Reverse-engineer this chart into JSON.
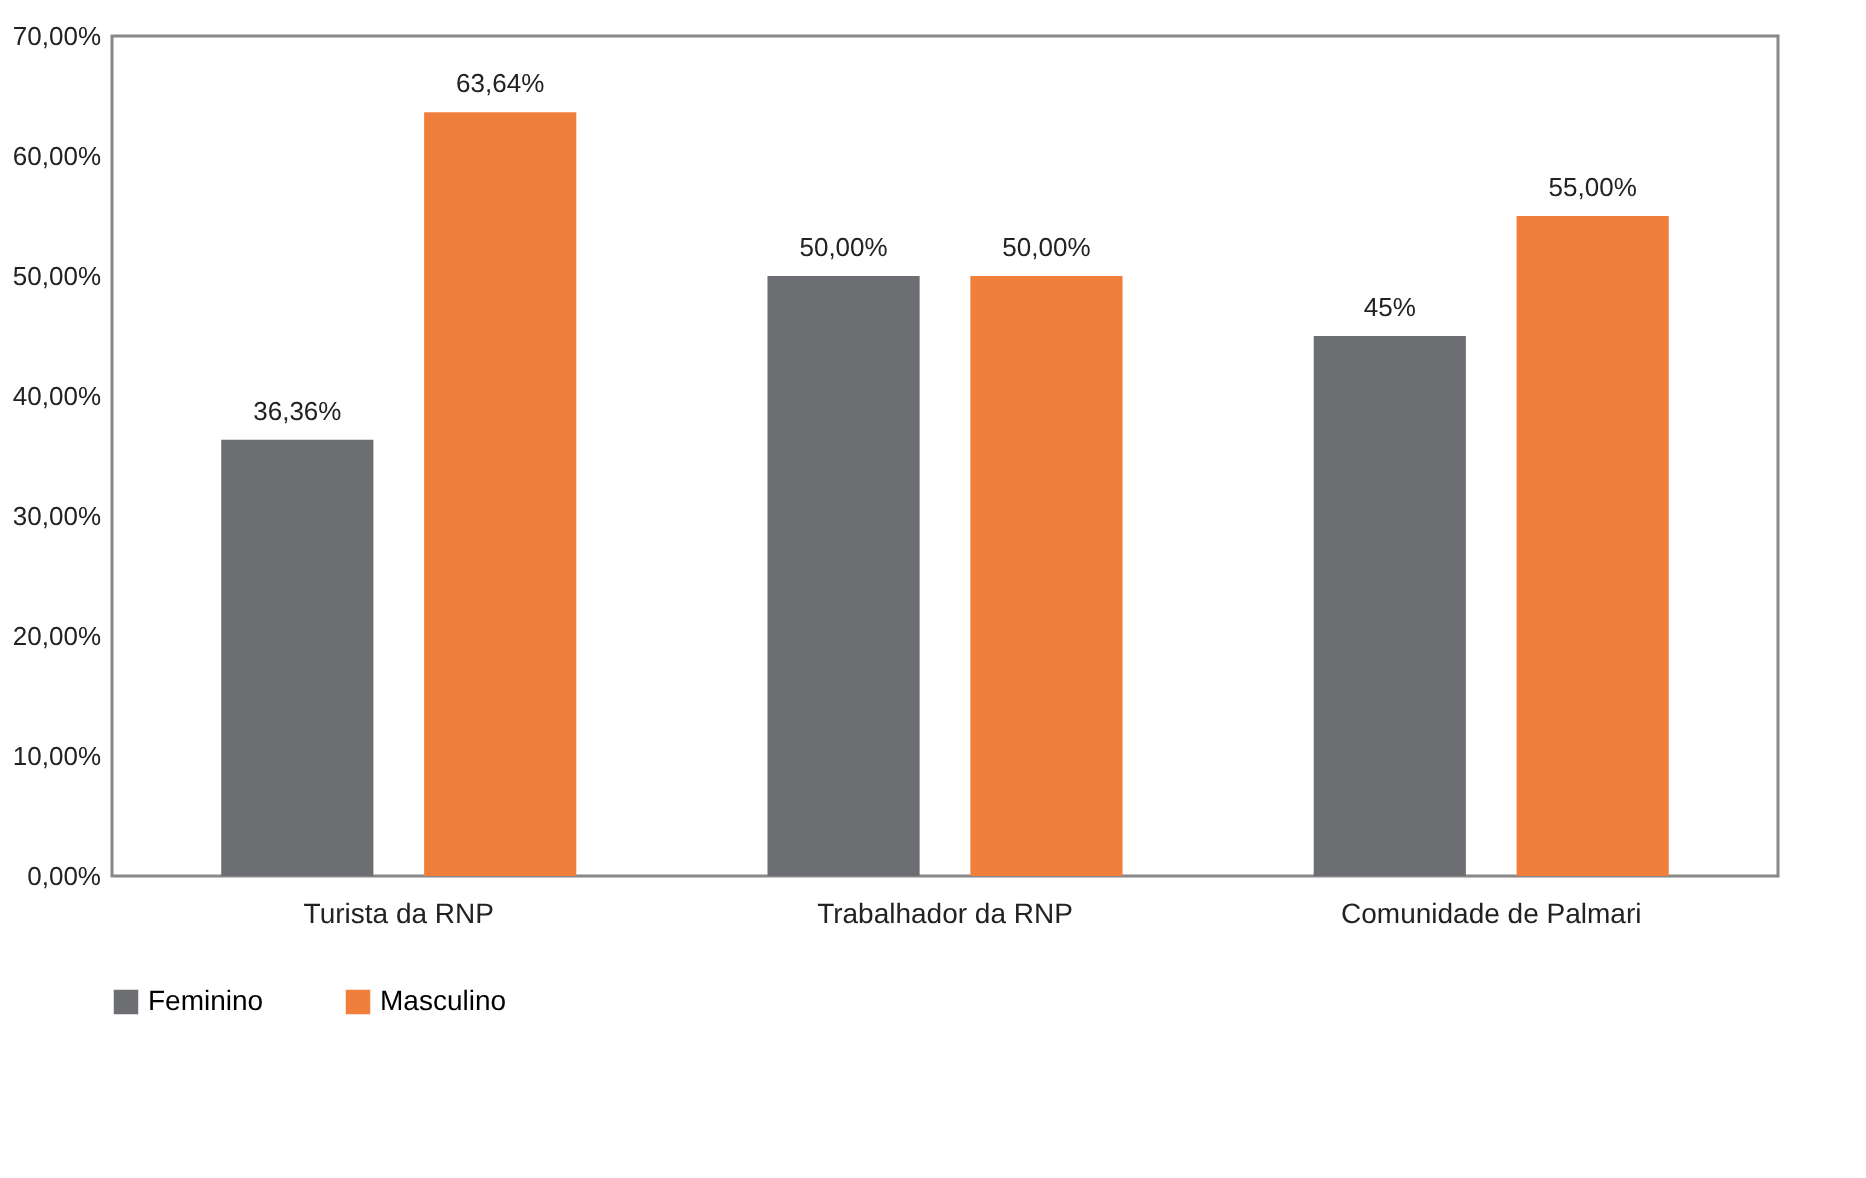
{
  "chart_data": {
    "type": "bar",
    "categories": [
      "Turista da RNP",
      "Trabalhador da RNP",
      "Comunidade de Palmari"
    ],
    "series": [
      {
        "name": "Feminino",
        "color": "#6d6e71",
        "values": [
          36.36,
          50,
          45
        ],
        "value_labels": [
          "36,36%",
          "50,00%",
          "45%"
        ]
      },
      {
        "name": "Masculino",
        "color": "#f07f3c",
        "values": [
          63.64,
          50,
          55
        ],
        "value_labels": [
          "63,64%",
          "50,00%",
          "55,00%"
        ]
      }
    ],
    "ylim": [
      0,
      70
    ],
    "yticks": [
      {
        "value": 0,
        "label": "0,00%"
      },
      {
        "value": 10,
        "label": "10,00%"
      },
      {
        "value": 20,
        "label": "20,00%"
      },
      {
        "value": 30,
        "label": "30,00%"
      },
      {
        "value": 40,
        "label": "40,00%"
      },
      {
        "value": 50,
        "label": "50,00%"
      },
      {
        "value": 60,
        "label": "60,00%"
      },
      {
        "value": 70,
        "label": "70,00%"
      }
    ],
    "grid": false,
    "legend": "bottom"
  }
}
